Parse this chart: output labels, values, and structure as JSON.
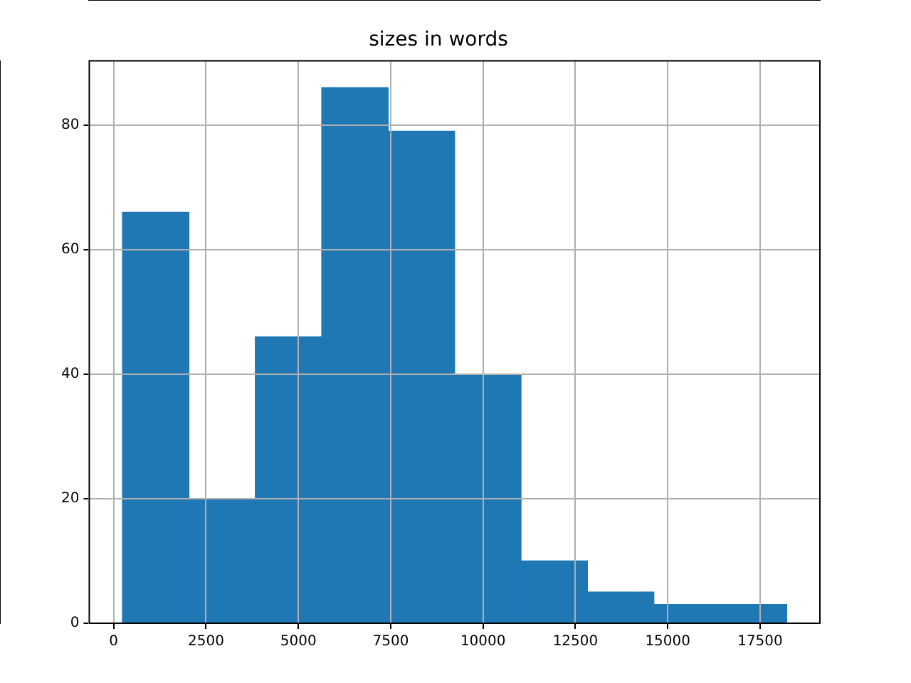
{
  "chart_data": {
    "type": "histogram",
    "title": "sizes in words",
    "bins": [
      240,
      2038,
      3836,
      5634,
      7432,
      9230,
      11028,
      12826,
      14624,
      16422,
      18220
    ],
    "values": [
      66,
      20,
      46,
      86,
      79,
      40,
      10,
      5,
      3,
      3
    ],
    "color": "#1f77b4",
    "xlim": [
      -659,
      19119
    ],
    "xticks": [
      0,
      2500,
      5000,
      7500,
      10000,
      12500,
      15000,
      17500
    ],
    "ylim": [
      0,
      90.3
    ],
    "yticks": [
      0,
      20,
      40,
      60,
      80
    ],
    "grid": true
  }
}
